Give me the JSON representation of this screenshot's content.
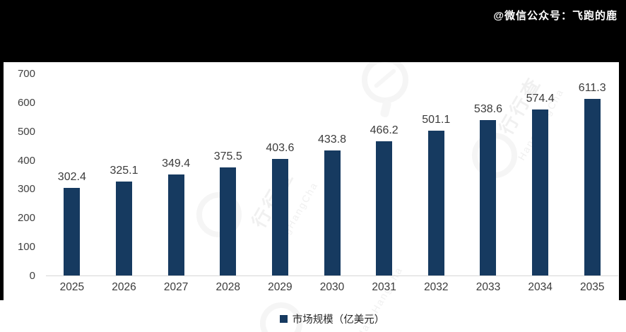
{
  "header": {
    "credit": "@微信公众号：飞跑的鹿"
  },
  "chart_data": {
    "type": "bar",
    "categories": [
      "2025",
      "2026",
      "2027",
      "2028",
      "2029",
      "2030",
      "2031",
      "2032",
      "2033",
      "2034",
      "2035"
    ],
    "values": [
      302.4,
      325.1,
      349.4,
      375.5,
      403.6,
      433.8,
      466.2,
      501.1,
      538.6,
      574.4,
      611.3
    ],
    "series_name": "市场规模（亿美元）",
    "title": "",
    "xlabel": "",
    "ylabel": "",
    "ylim": [
      0,
      700
    ],
    "yticks": [
      0,
      100,
      200,
      300,
      400,
      500,
      600,
      700
    ],
    "grid": false,
    "legend_position": "bottom",
    "bar_color": "#163a60",
    "data_labels": true
  },
  "watermark": {
    "cn": "行行查",
    "en": "HangHangCha"
  }
}
